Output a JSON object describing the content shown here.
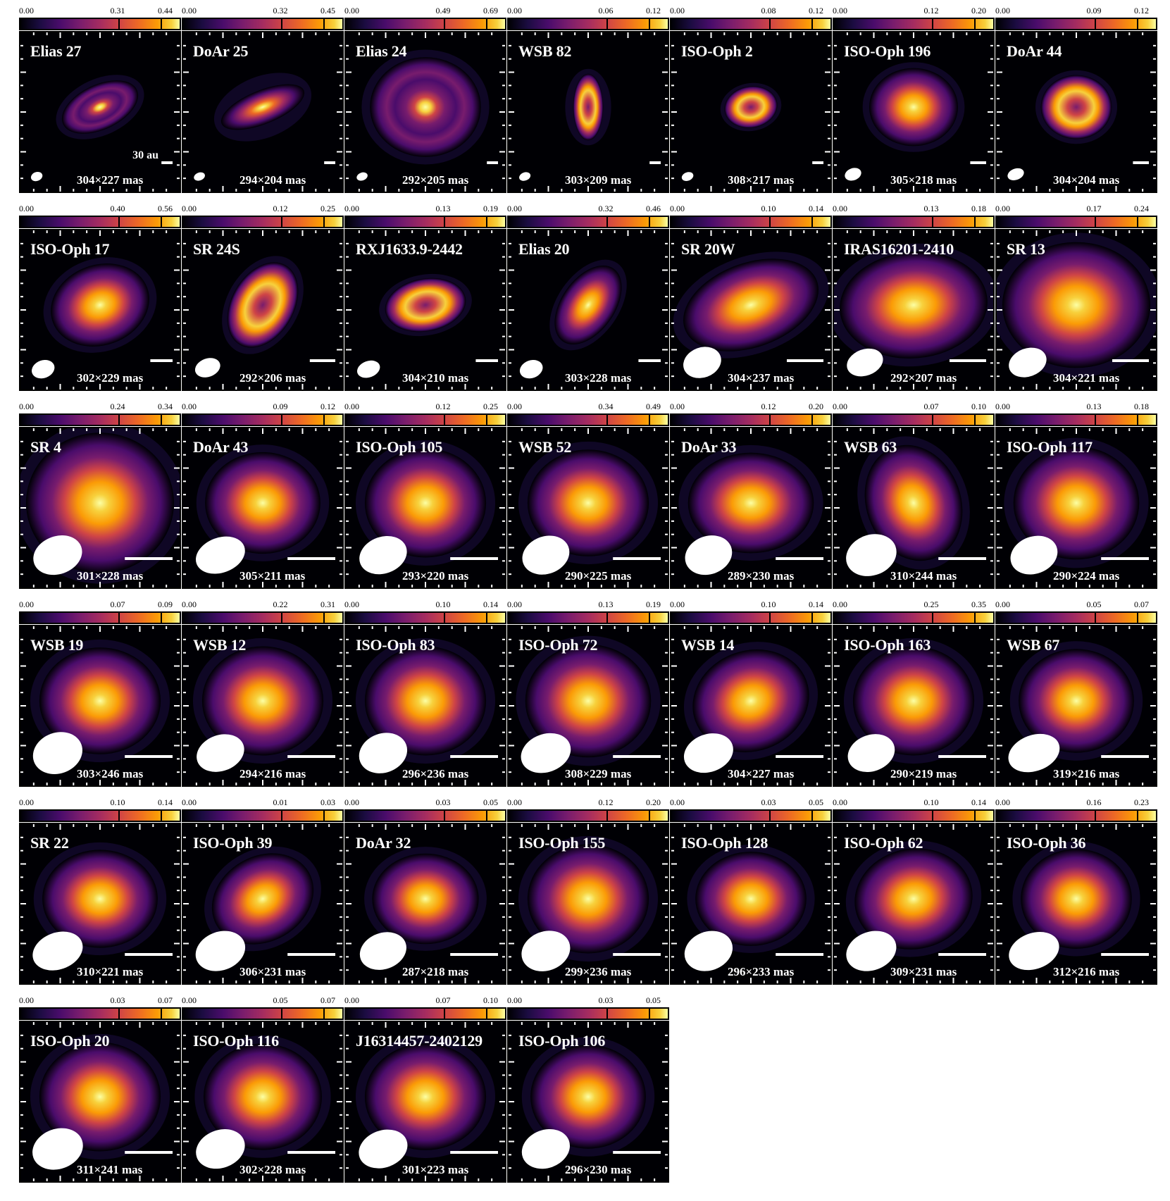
{
  "colormap": [
    "#000004",
    "#1b0c41",
    "#4a0c6b",
    "#781c6d",
    "#a52c60",
    "#cf4446",
    "#ed6925",
    "#fb9b06",
    "#f7d13d",
    "#fcffa4"
  ],
  "scalebar_label": "30 au",
  "panels": [
    {
      "name": "Elias 27",
      "min": "0.00",
      "mid": "0.31",
      "max": "0.44",
      "beam": "304×227 mas",
      "morph": "disk-ring",
      "inc": 0.55,
      "pa": -25,
      "extent": 0.55,
      "sb": 0.07
    },
    {
      "name": "DoAr 25",
      "min": "0.00",
      "mid": "0.32",
      "max": "0.45",
      "beam": "294×204 mas",
      "morph": "disk",
      "inc": 0.38,
      "pa": -22,
      "extent": 0.6,
      "sb": 0.07
    },
    {
      "name": "Elias 24",
      "min": "0.00",
      "mid": "0.49",
      "max": "0.69",
      "beam": "292×205 mas",
      "morph": "disk-ring",
      "inc": 0.9,
      "pa": 0,
      "extent": 0.75,
      "sb": 0.07
    },
    {
      "name": "WSB 82",
      "min": "0.00",
      "mid": "0.06",
      "max": "0.12",
      "beam": "303×209 mas",
      "morph": "ring",
      "inc": 0.45,
      "pa": 90,
      "extent": 0.45,
      "sb": 0.07
    },
    {
      "name": "ISO-Oph 2",
      "min": "0.00",
      "mid": "0.08",
      "max": "0.12",
      "beam": "308×217 mas",
      "morph": "ring",
      "inc": 0.78,
      "pa": -10,
      "extent": 0.36,
      "sb": 0.07
    },
    {
      "name": "ISO-Oph 196",
      "min": "0.00",
      "mid": "0.12",
      "max": "0.20",
      "beam": "305×218 mas",
      "morph": "blob",
      "inc": 0.88,
      "pa": 0,
      "extent": 0.6,
      "sb": 0.1
    },
    {
      "name": "DoAr 44",
      "min": "0.00",
      "mid": "0.09",
      "max": "0.12",
      "beam": "304×204 mas",
      "morph": "ring",
      "inc": 0.9,
      "pa": 0,
      "extent": 0.48,
      "sb": 0.1
    },
    {
      "name": "ISO-Oph 17",
      "min": "0.00",
      "mid": "0.40",
      "max": "0.56",
      "beam": "302×229 mas",
      "morph": "blob",
      "inc": 0.8,
      "pa": -20,
      "extent": 0.68,
      "sb": 0.14
    },
    {
      "name": "SR 24S",
      "min": "0.00",
      "mid": "0.12",
      "max": "0.25",
      "beam": "292×206 mas",
      "morph": "ring",
      "inc": 0.68,
      "pa": -60,
      "extent": 0.62,
      "sb": 0.16
    },
    {
      "name": "RXJ1633.9-2442",
      "min": "0.00",
      "mid": "0.13",
      "max": "0.19",
      "beam": "304×210 mas",
      "morph": "ring",
      "inc": 0.65,
      "pa": -10,
      "extent": 0.55,
      "sb": 0.14
    },
    {
      "name": "Elias 20",
      "min": "0.00",
      "mid": "0.32",
      "max": "0.46",
      "beam": "303×228 mas",
      "morph": "blob",
      "inc": 0.6,
      "pa": -55,
      "extent": 0.6,
      "sb": 0.14
    },
    {
      "name": "SR 20W",
      "min": "0.00",
      "mid": "0.10",
      "max": "0.14",
      "beam": "304×237 mas",
      "morph": "blob",
      "inc": 0.6,
      "pa": -20,
      "extent": 0.95,
      "sb": 0.23
    },
    {
      "name": "IRAS16201-2410",
      "min": "0.00",
      "mid": "0.13",
      "max": "0.18",
      "beam": "292×207 mas",
      "morph": "blob",
      "inc": 0.72,
      "pa": -5,
      "extent": 1.0,
      "sb": 0.23
    },
    {
      "name": "SR 13",
      "min": "0.00",
      "mid": "0.17",
      "max": "0.24",
      "beam": "304×221 mas",
      "morph": "blob",
      "inc": 0.85,
      "pa": 0,
      "extent": 1.0,
      "sb": 0.23
    },
    {
      "name": "SR 4",
      "min": "0.00",
      "mid": "0.24",
      "max": "0.34",
      "beam": "301×228 mas",
      "morph": "blob",
      "inc": 0.95,
      "pa": 0,
      "extent": 1.0,
      "sb": 0.3
    },
    {
      "name": "DoAr 43",
      "min": "0.00",
      "mid": "0.09",
      "max": "0.12",
      "beam": "305×211 mas",
      "morph": "blob",
      "inc": 0.88,
      "pa": 0,
      "extent": 0.78,
      "sb": 0.3
    },
    {
      "name": "ISO-Oph 105",
      "min": "0.00",
      "mid": "0.12",
      "max": "0.25",
      "beam": "293×220 mas",
      "morph": "blob",
      "inc": 0.9,
      "pa": 0,
      "extent": 0.82,
      "sb": 0.3
    },
    {
      "name": "WSB 52",
      "min": "0.00",
      "mid": "0.34",
      "max": "0.49",
      "beam": "290×225 mas",
      "morph": "blob",
      "inc": 0.88,
      "pa": 0,
      "extent": 0.82,
      "sb": 0.3
    },
    {
      "name": "DoAr 33",
      "min": "0.00",
      "mid": "0.12",
      "max": "0.20",
      "beam": "289×230 mas",
      "morph": "blob",
      "inc": 0.8,
      "pa": 0,
      "extent": 0.85,
      "sb": 0.3
    },
    {
      "name": "WSB 63",
      "min": "0.00",
      "mid": "0.07",
      "max": "0.10",
      "beam": "310×244 mas",
      "morph": "blob",
      "inc": 0.8,
      "pa": 70,
      "extent": 0.8,
      "sb": 0.3
    },
    {
      "name": "ISO-Oph 117",
      "min": "0.00",
      "mid": "0.13",
      "max": "0.18",
      "beam": "290×224 mas",
      "morph": "blob",
      "inc": 0.9,
      "pa": 0,
      "extent": 0.85,
      "sb": 0.3
    },
    {
      "name": "WSB 19",
      "min": "0.00",
      "mid": "0.07",
      "max": "0.09",
      "beam": "303×246 mas",
      "morph": "blob",
      "inc": 0.88,
      "pa": 0,
      "extent": 0.82,
      "sb": 0.3
    },
    {
      "name": "WSB 12",
      "min": "0.00",
      "mid": "0.22",
      "max": "0.31",
      "beam": "294×216 mas",
      "morph": "blob",
      "inc": 0.9,
      "pa": 0,
      "extent": 0.82,
      "sb": 0.3
    },
    {
      "name": "ISO-Oph 83",
      "min": "0.00",
      "mid": "0.10",
      "max": "0.14",
      "beam": "296×236 mas",
      "morph": "blob",
      "inc": 0.9,
      "pa": 0,
      "extent": 0.82,
      "sb": 0.3
    },
    {
      "name": "ISO-Oph 72",
      "min": "0.00",
      "mid": "0.13",
      "max": "0.19",
      "beam": "308×229 mas",
      "morph": "blob",
      "inc": 0.9,
      "pa": 0,
      "extent": 0.85,
      "sb": 0.3
    },
    {
      "name": "WSB 14",
      "min": "0.00",
      "mid": "0.10",
      "max": "0.14",
      "beam": "304×227 mas",
      "morph": "blob",
      "inc": 0.85,
      "pa": -20,
      "extent": 0.8,
      "sb": 0.3
    },
    {
      "name": "ISO-Oph 163",
      "min": "0.00",
      "mid": "0.25",
      "max": "0.35",
      "beam": "290×219 mas",
      "morph": "blob",
      "inc": 0.9,
      "pa": 0,
      "extent": 0.82,
      "sb": 0.3
    },
    {
      "name": "WSB 67",
      "min": "0.00",
      "mid": "0.05",
      "max": "0.07",
      "beam": "319×216 mas",
      "morph": "blob",
      "inc": 0.9,
      "pa": 0,
      "extent": 0.78,
      "sb": 0.3
    },
    {
      "name": "SR 22",
      "min": "0.00",
      "mid": "0.10",
      "max": "0.14",
      "beam": "310×221 mas",
      "morph": "blob",
      "inc": 0.85,
      "pa": 0,
      "extent": 0.78,
      "sb": 0.3
    },
    {
      "name": "ISO-Oph 39",
      "min": "0.00",
      "mid": "0.01",
      "max": "0.03",
      "beam": "306×231 mas",
      "morph": "blob",
      "inc": 0.8,
      "pa": -30,
      "extent": 0.72,
      "sb": 0.3
    },
    {
      "name": "DoAr 32",
      "min": "0.00",
      "mid": "0.03",
      "max": "0.05",
      "beam": "287×218 mas",
      "morph": "blob",
      "inc": 0.85,
      "pa": 0,
      "extent": 0.72,
      "sb": 0.3
    },
    {
      "name": "ISO-Oph 155",
      "min": "0.00",
      "mid": "0.12",
      "max": "0.20",
      "beam": "299×236 mas",
      "morph": "blob",
      "inc": 0.9,
      "pa": 0,
      "extent": 0.82,
      "sb": 0.3
    },
    {
      "name": "ISO-Oph 128",
      "min": "0.00",
      "mid": "0.03",
      "max": "0.05",
      "beam": "296×233 mas",
      "morph": "blob",
      "inc": 0.85,
      "pa": 0,
      "extent": 0.75,
      "sb": 0.3
    },
    {
      "name": "ISO-Oph 62",
      "min": "0.00",
      "mid": "0.10",
      "max": "0.14",
      "beam": "309×231 mas",
      "morph": "blob",
      "inc": 0.85,
      "pa": -10,
      "extent": 0.8,
      "sb": 0.3
    },
    {
      "name": "ISO-Oph 36",
      "min": "0.00",
      "mid": "0.16",
      "max": "0.23",
      "beam": "312×216 mas",
      "morph": "blob",
      "inc": 0.9,
      "pa": 0,
      "extent": 0.75,
      "sb": 0.3
    },
    {
      "name": "ISO-Oph 20",
      "min": "0.00",
      "mid": "0.03",
      "max": "0.07",
      "beam": "311×241 mas",
      "morph": "blob",
      "inc": 0.9,
      "pa": 0,
      "extent": 0.82,
      "sb": 0.3
    },
    {
      "name": "ISO-Oph 116",
      "min": "0.00",
      "mid": "0.05",
      "max": "0.07",
      "beam": "302×228 mas",
      "morph": "blob",
      "inc": 0.9,
      "pa": 0,
      "extent": 0.8,
      "sb": 0.3
    },
    {
      "name": "J16314457-2402129",
      "min": "0.00",
      "mid": "0.07",
      "max": "0.10",
      "beam": "301×223 mas",
      "morph": "blob",
      "inc": 0.88,
      "pa": 0,
      "extent": 0.82,
      "sb": 0.3
    },
    {
      "name": "ISO-Oph 106",
      "min": "0.00",
      "mid": "0.03",
      "max": "0.05",
      "beam": "296×230 mas",
      "morph": "blob",
      "inc": 0.9,
      "pa": 0,
      "extent": 0.78,
      "sb": 0.3
    }
  ]
}
